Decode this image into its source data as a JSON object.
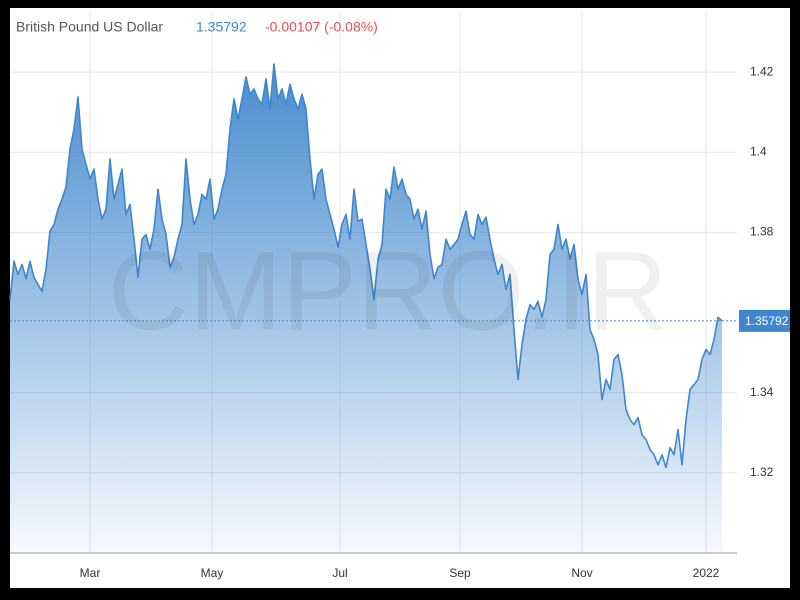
{
  "chart_data": {
    "type": "area",
    "title": "British Pound US Dollar",
    "price": 1.35792,
    "change": "-0.00107 (-0.08%)",
    "watermark": "CMPRO.IR",
    "color": "#3f86cc",
    "grid": true,
    "ylim": [
      1.3,
      1.435
    ],
    "yticks": [
      1.32,
      1.34,
      1.38,
      1.4,
      1.42
    ],
    "xlim": [
      0,
      181.75
    ],
    "xticks": [
      {
        "value": 20,
        "label": "Mar"
      },
      {
        "value": 50.5,
        "label": "May"
      },
      {
        "value": 82.5,
        "label": "Jul"
      },
      {
        "value": 112.5,
        "label": "Sep"
      },
      {
        "value": 143,
        "label": "Nov"
      },
      {
        "value": 174,
        "label": "2022"
      }
    ],
    "values": [
      1.3633,
      1.3728,
      1.3695,
      1.372,
      1.3685,
      1.3728,
      1.3688,
      1.367,
      1.3653,
      1.3708,
      1.3803,
      1.382,
      1.3858,
      1.3883,
      1.3913,
      1.4008,
      1.4058,
      1.4138,
      1.4008,
      1.397,
      1.3933,
      1.3958,
      1.3883,
      1.3833,
      1.3858,
      1.3983,
      1.3883,
      1.392,
      1.3958,
      1.3845,
      1.387,
      1.3783,
      1.3688,
      1.3783,
      1.3795,
      1.3758,
      1.3808,
      1.3908,
      1.3833,
      1.3795,
      1.3713,
      1.3738,
      1.3783,
      1.382,
      1.3983,
      1.3883,
      1.382,
      1.3845,
      1.3895,
      1.3883,
      1.3933,
      1.3833,
      1.3858,
      1.3908,
      1.3945,
      1.4058,
      1.4133,
      1.4083,
      1.4133,
      1.4188,
      1.4145,
      1.4158,
      1.4133,
      1.412,
      1.4183,
      1.4108,
      1.422,
      1.4133,
      1.4158,
      1.412,
      1.417,
      1.4133,
      1.4108,
      1.4145,
      1.4108,
      1.3983,
      1.3883,
      1.3945,
      1.3958,
      1.3883,
      1.3845,
      1.3808,
      1.3763,
      1.382,
      1.3845,
      1.3783,
      1.3908,
      1.3828,
      1.3833,
      1.377,
      1.3708,
      1.3633,
      1.3733,
      1.377,
      1.3908,
      1.3883,
      1.3963,
      1.3908,
      1.3933,
      1.3895,
      1.3883,
      1.3833,
      1.3858,
      1.3808,
      1.3853,
      1.3745,
      1.3685,
      1.3713,
      1.372,
      1.3783,
      1.3758,
      1.377,
      1.3783,
      1.382,
      1.3853,
      1.3795,
      1.3783,
      1.3845,
      1.382,
      1.3838,
      1.3783,
      1.3733,
      1.3695,
      1.372,
      1.3658,
      1.3695,
      1.3558,
      1.3433,
      1.352,
      1.3583,
      1.362,
      1.3608,
      1.3628,
      1.3588,
      1.3633,
      1.3745,
      1.3758,
      1.382,
      1.3758,
      1.3783,
      1.3733,
      1.377,
      1.3683,
      1.3645,
      1.3695,
      1.3558,
      1.3533,
      1.3495,
      1.3383,
      1.3433,
      1.3408,
      1.3483,
      1.3495,
      1.3445,
      1.3358,
      1.3333,
      1.332,
      1.3338,
      1.3295,
      1.3283,
      1.3258,
      1.3245,
      1.322,
      1.3245,
      1.3213,
      1.3263,
      1.3245,
      1.3308,
      1.322,
      1.3333,
      1.3408,
      1.342,
      1.3433,
      1.3483,
      1.3508,
      1.3495,
      1.3533,
      1.3588,
      1.35792
    ]
  }
}
